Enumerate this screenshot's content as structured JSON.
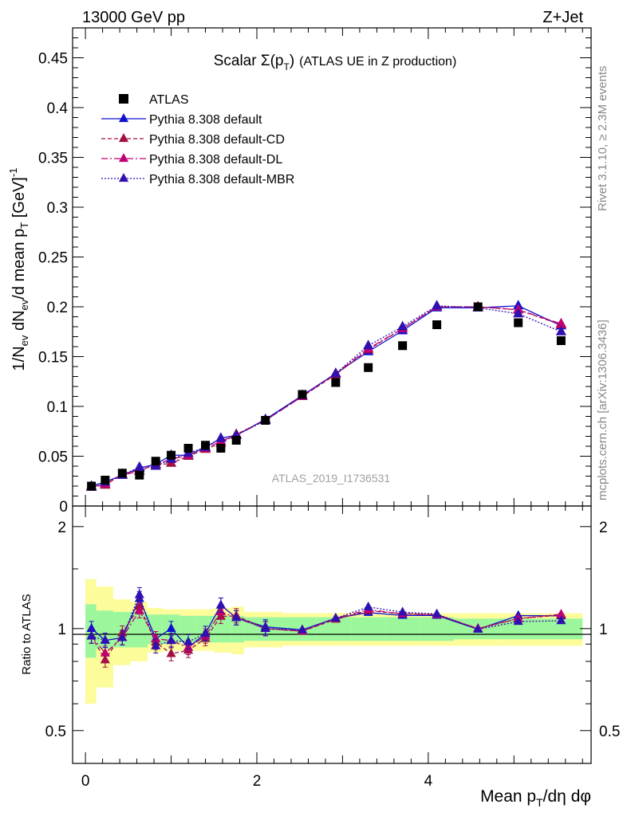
{
  "header": {
    "left": "13000 GeV pp",
    "right": "Z+Jet"
  },
  "side": {
    "rivet": "Rivet 3.1.10, ≥ 2.3M events",
    "mcplots": "mcplots.cern.ch [arXiv:1306.3436]"
  },
  "chart_data": {
    "type": "scatter",
    "title_main": "Scalar Σ(p",
    "title_sub": "T",
    "title_close": ")",
    "title_rest": "(ATLAS UE in Z production)",
    "watermark": "ATLAS_2019_I1736531",
    "ylabel": "1/N_ev dN_ev/d mean p_T [GeV]^-1",
    "ratio_ylabel": "Ratio to ATLAS",
    "xlabel": "Mean p_T/dη dφ",
    "xlim": [
      -0.15,
      5.9
    ],
    "ylim": [
      0,
      0.48
    ],
    "ratio_ylim": [
      0.4,
      2.3
    ],
    "yticks": [
      "0",
      "0.05",
      "0.1",
      "0.15",
      "0.2",
      "0.25",
      "0.3",
      "0.35",
      "0.4",
      "0.45"
    ],
    "xticks": [
      "0",
      "2",
      "4"
    ],
    "ratio_ticks": [
      "0.5",
      "1",
      "2"
    ],
    "bin_edges": [
      0,
      0.125,
      0.325,
      0.525,
      0.725,
      0.9,
      1.1,
      1.3,
      1.5,
      1.7,
      1.85,
      2.3,
      2.7,
      3.1,
      3.5,
      3.9,
      4.3,
      4.85,
      5.3,
      5.8
    ],
    "x": [
      0.07,
      0.23,
      0.43,
      0.63,
      0.82,
      1.0,
      1.2,
      1.4,
      1.58,
      1.76,
      2.1,
      2.53,
      2.92,
      3.3,
      3.7,
      4.1,
      4.58,
      5.05,
      5.55
    ],
    "atlas": [
      0.02,
      0.026,
      0.033,
      0.031,
      0.045,
      0.051,
      0.058,
      0.061,
      0.058,
      0.066,
      0.086,
      0.112,
      0.124,
      0.139,
      0.161,
      0.182,
      0.2,
      0.184,
      0.166
    ],
    "series": [
      {
        "name": "Pythia 8.308 default",
        "color": "#1010d0",
        "dash": "",
        "marker": "triangle",
        "values": [
          0.02,
          0.024,
          0.031,
          0.038,
          0.042,
          0.051,
          0.051,
          0.059,
          0.068,
          0.071,
          0.087,
          0.111,
          0.133,
          0.155,
          0.176,
          0.199,
          0.199,
          0.201,
          0.181
        ]
      },
      {
        "name": "Pythia 8.308 default-CD",
        "color": "#a01040",
        "dash": "5,3",
        "marker": "triangle",
        "values": [
          0.019,
          0.021,
          0.032,
          0.036,
          0.041,
          0.043,
          0.05,
          0.057,
          0.063,
          0.072,
          0.086,
          0.11,
          0.132,
          0.157,
          0.178,
          0.2,
          0.2,
          0.197,
          0.182
        ]
      },
      {
        "name": "Pythia 8.308 default-DL",
        "color": "#c00070",
        "dash": "8,3,2,3",
        "marker": "triangle",
        "values": [
          0.019,
          0.022,
          0.031,
          0.035,
          0.042,
          0.047,
          0.051,
          0.058,
          0.065,
          0.071,
          0.086,
          0.11,
          0.133,
          0.158,
          0.178,
          0.2,
          0.2,
          0.197,
          0.183
        ]
      },
      {
        "name": "Pythia 8.308 default-MBR",
        "color": "#3010b0",
        "dash": "2,2",
        "marker": "triangle",
        "values": [
          0.019,
          0.024,
          0.031,
          0.039,
          0.04,
          0.047,
          0.053,
          0.059,
          0.068,
          0.071,
          0.086,
          0.111,
          0.133,
          0.161,
          0.18,
          0.201,
          0.199,
          0.193,
          0.175
        ]
      }
    ],
    "data_band_inner": [
      0.18,
      0.13,
      0.12,
      0.12,
      0.1,
      0.1,
      0.09,
      0.09,
      0.09,
      0.09,
      0.08,
      0.08,
      0.08,
      0.08,
      0.08,
      0.08,
      0.07,
      0.07,
      0.07
    ],
    "data_band_outer": [
      0.4,
      0.33,
      0.22,
      0.2,
      0.15,
      0.14,
      0.14,
      0.14,
      0.15,
      0.16,
      0.12,
      0.11,
      0.11,
      0.11,
      0.11,
      0.11,
      0.11,
      0.11,
      0.11
    ],
    "legend_position": "top-left",
    "grid": false
  }
}
